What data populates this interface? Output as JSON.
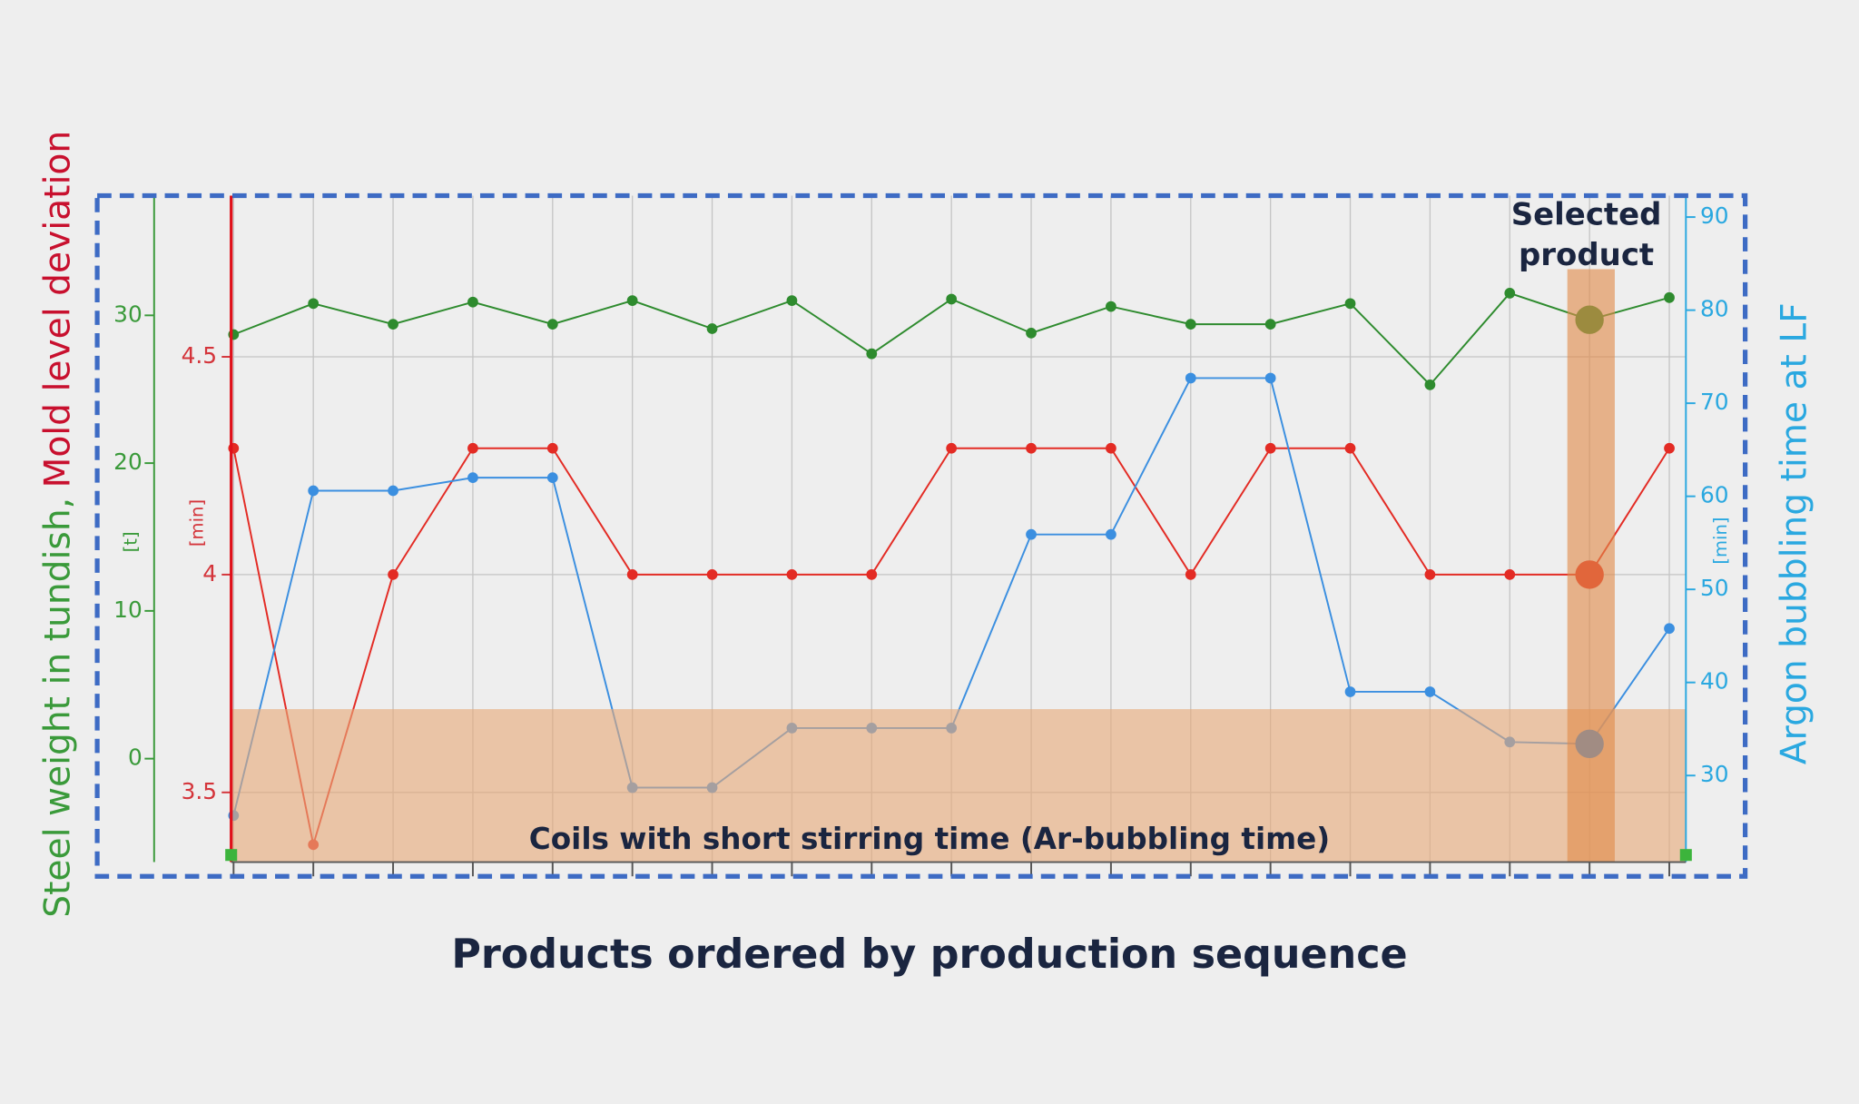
{
  "chart_data": {
    "type": "line",
    "categories": [
      null,
      null,
      null,
      null,
      null,
      null,
      null,
      null,
      null,
      null,
      null,
      null,
      null,
      null,
      null,
      null,
      null,
      null,
      null
    ],
    "ylabel": "Steel weight in tundish,",
    "y3label": "Mold level deviation",
    "y2label": "Argon bubbling time at LF",
    "yunit": "[t]",
    "y3unit": "[min]",
    "y2unit": "[min]",
    "xlabel": "Products ordered by production sequence",
    "annotations": [
      "Selected product",
      "Coils with short stirring time (Ar-bubbling time)"
    ],
    "selected": 17,
    "ylim": [
      -7.0,
      38.1
    ],
    "yticks": [
      0,
      10,
      20,
      30
    ],
    "y3lim": [
      3.34,
      4.87
    ],
    "y3ticks": [
      3.5,
      4,
      4.5
    ],
    "y2lim": [
      20.7,
      92.3
    ],
    "y2ticks": [
      30,
      40,
      50,
      60,
      70,
      80,
      90
    ],
    "grid": true,
    "series": [
      {
        "name": "Steel weight in tundish",
        "color": "#2e8b2e",
        "axis": "y",
        "values": [
          28.7,
          30.8,
          29.4,
          30.9,
          29.4,
          31.0,
          29.1,
          31.0,
          27.4,
          31.1,
          28.8,
          30.6,
          29.4,
          29.4,
          30.8,
          25.3,
          31.5,
          29.7,
          31.2
        ]
      },
      {
        "name": "Mold level deviation",
        "color": "#e32b24",
        "axis": "y3",
        "values": [
          4.29,
          3.38,
          4.0,
          4.29,
          4.29,
          4.0,
          4.0,
          4.0,
          4.0,
          4.29,
          4.29,
          4.29,
          4.0,
          4.29,
          4.29,
          4.0,
          4.0,
          4.0,
          4.29
        ]
      },
      {
        "name": "Argon bubbling time at LF",
        "color": "#3b8fe0",
        "axis": "y2",
        "values": [
          25.7,
          60.6,
          60.6,
          62.0,
          62.0,
          28.7,
          28.7,
          35.1,
          35.1,
          35.1,
          55.9,
          55.9,
          72.7,
          72.7,
          39.0,
          39.0,
          33.6,
          33.4,
          45.8
        ]
      }
    ]
  }
}
